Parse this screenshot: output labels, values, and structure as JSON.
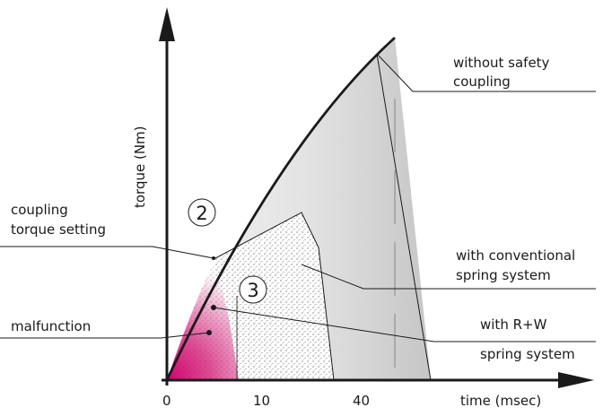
{
  "axes": {
    "y_label": "torque (Nm)",
    "x_label": "time (msec)",
    "x_ticks": [
      "0",
      "10",
      "40"
    ]
  },
  "markers": {
    "two": "2",
    "three": "3"
  },
  "labels": {
    "without_safety_line1": "without safety",
    "without_safety_line2": "coupling",
    "coupling_line1": "coupling",
    "coupling_line2": "torque setting",
    "conventional_line1": "with conventional",
    "conventional_line2": "spring system",
    "rw_line1": "with R+W",
    "rw_line2": "spring system",
    "malfunction": "malfunction"
  },
  "colors": {
    "magenta": "#d6006f",
    "gray_fill": "#d9d9d9",
    "line": "#1a1a1a"
  }
}
